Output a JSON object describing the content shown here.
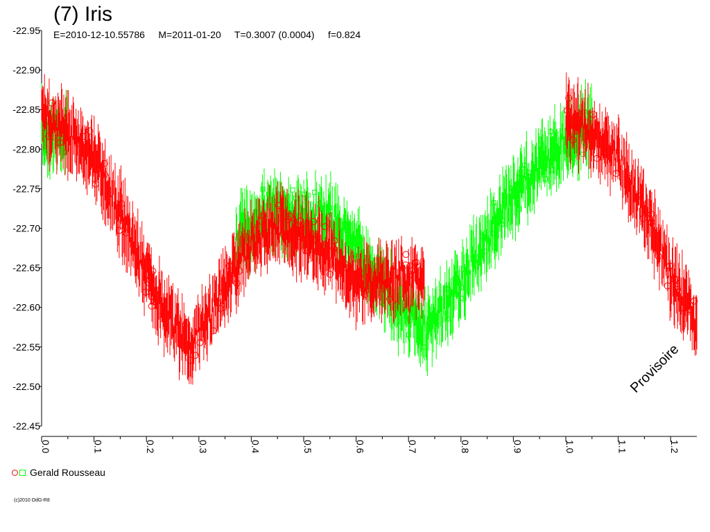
{
  "chart_data": {
    "type": "scatter",
    "title": "(7) Iris",
    "subtitle": "E=2010-12-10.55786     M=2011-01-20     T=0.3007 (0.0004)     f=0.824",
    "xlabel": "",
    "ylabel": "",
    "xlim": [
      0.0,
      1.25
    ],
    "ylim": [
      -22.45,
      -22.95
    ],
    "x_ticks": [
      "0.0",
      "0.1",
      "0.2",
      "0.3",
      "0.4",
      "0.5",
      "0.6",
      "0.7",
      "0.8",
      "0.9",
      "1.0",
      "1.1",
      "1.2"
    ],
    "y_ticks": [
      "-22.95",
      "-22.90",
      "-22.85",
      "-22.80",
      "-22.75",
      "-22.70",
      "-22.65",
      "-22.60",
      "-22.55",
      "-22.50",
      "-22.45"
    ],
    "legend_placement": "bottom-left",
    "grid": false,
    "series": [
      {
        "name": "Gerald Rousseau",
        "color": "#ff0000",
        "marker": "circle-errorbar",
        "segments": [
          {
            "x": [
              0.0,
              0.05,
              0.1,
              0.15,
              0.2,
              0.25,
              0.28,
              0.32,
              0.36,
              0.4,
              0.45,
              0.5,
              0.55,
              0.6,
              0.65,
              0.7,
              0.73
            ],
            "y": [
              -22.84,
              -22.82,
              -22.79,
              -22.72,
              -22.64,
              -22.58,
              -22.55,
              -22.59,
              -22.64,
              -22.68,
              -22.7,
              -22.69,
              -22.67,
              -22.62,
              -22.64,
              -22.64,
              -22.64
            ]
          },
          {
            "x": [
              1.0,
              1.05,
              1.1,
              1.15,
              1.2,
              1.25
            ],
            "y": [
              -22.84,
              -22.82,
              -22.79,
              -22.72,
              -22.64,
              -22.58
            ]
          }
        ]
      },
      {
        "name": "",
        "color": "#00ff00",
        "marker": "square-errorbar",
        "segments": [
          {
            "x": [
              0.0,
              0.05
            ],
            "y": [
              -22.82,
              -22.82
            ]
          },
          {
            "x": [
              0.37,
              0.42,
              0.5,
              0.56,
              0.62,
              0.68,
              0.74,
              0.8,
              0.86,
              0.92,
              0.98,
              1.05
            ],
            "y": [
              -22.68,
              -22.72,
              -22.72,
              -22.71,
              -22.66,
              -22.6,
              -22.57,
              -22.63,
              -22.7,
              -22.76,
              -22.8,
              -22.83
            ]
          }
        ]
      }
    ]
  },
  "legend": {
    "label": "Gerald Rousseau"
  },
  "footer": {
    "copyright": "(c)2010 OdG-R8"
  },
  "watermark": "Provisoire"
}
